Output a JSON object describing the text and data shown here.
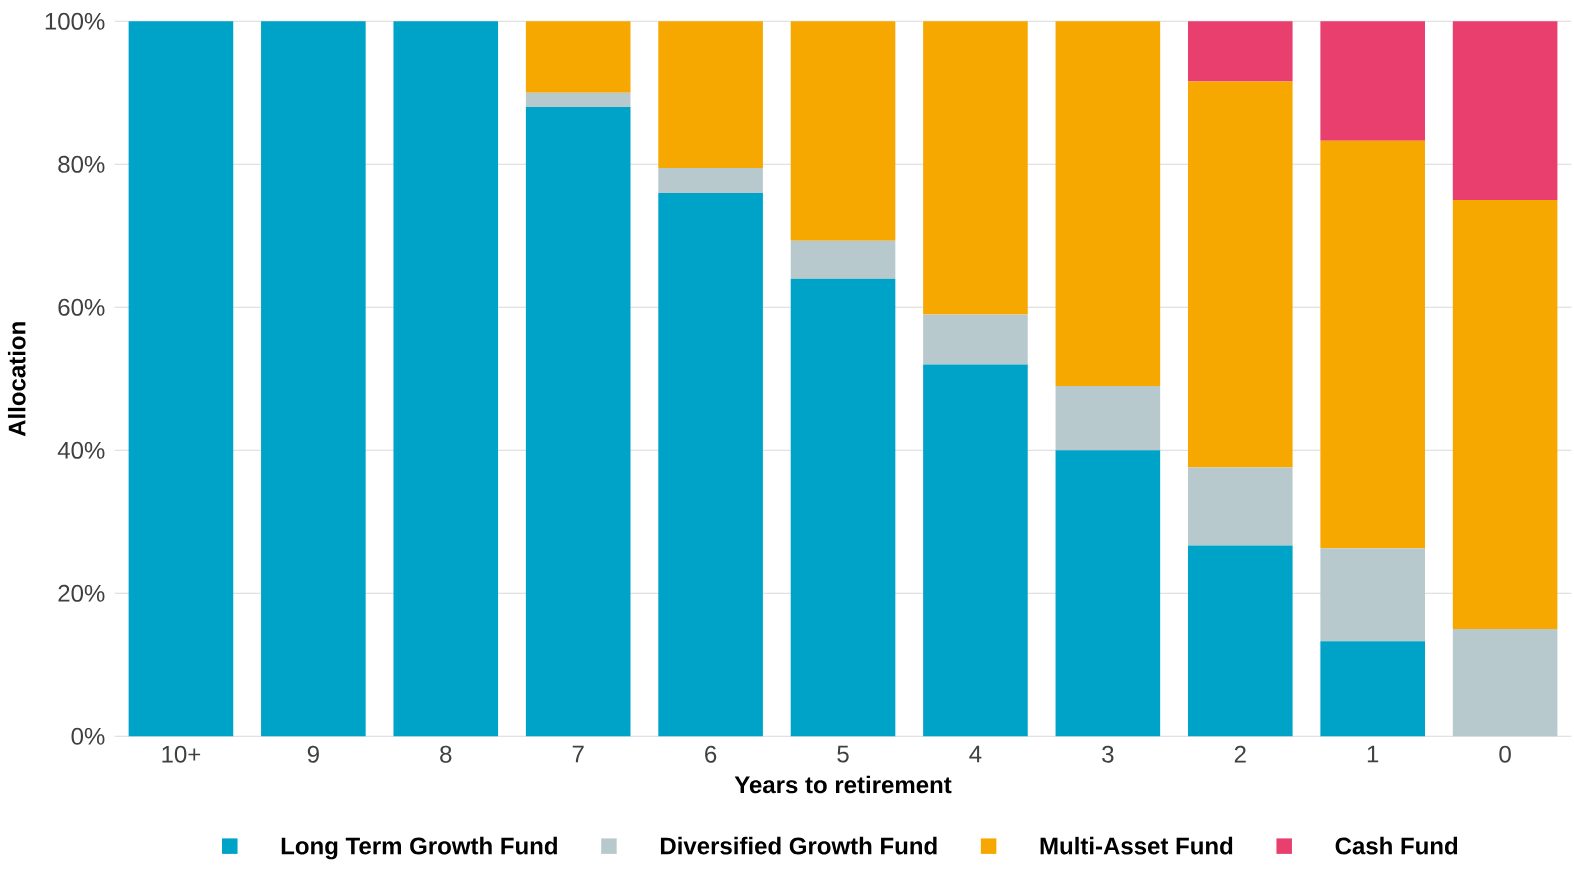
{
  "chart_data": {
    "type": "bar",
    "stacked": true,
    "xlabel": "Years to retirement",
    "ylabel": "Allocation",
    "categories": [
      "10+",
      "9",
      "8",
      "7",
      "6",
      "5",
      "4",
      "3",
      "2",
      "1",
      "0"
    ],
    "series": [
      {
        "name": "Long Term Growth Fund",
        "color": "#00a3c8",
        "values": [
          100,
          100,
          100,
          88,
          76,
          64,
          52,
          40,
          26.7,
          13.3,
          0
        ]
      },
      {
        "name": "Diversified Growth Fund",
        "color": "#b8c9cd",
        "values": [
          0,
          0,
          0,
          2,
          3.5,
          5.3,
          7,
          9,
          10.9,
          13,
          15
        ]
      },
      {
        "name": "Multi-Asset Fund",
        "color": "#f7a800",
        "values": [
          0,
          0,
          0,
          10,
          20.5,
          30.7,
          41,
          51,
          54,
          57,
          60
        ]
      },
      {
        "name": "Cash Fund",
        "color": "#e83f6f",
        "values": [
          0,
          0,
          0,
          0,
          0,
          0,
          0,
          0,
          8.4,
          16.7,
          25
        ]
      }
    ],
    "ylim": [
      0,
      100
    ],
    "yticks": [
      {
        "value": 0,
        "label": "0%"
      },
      {
        "value": 20,
        "label": "20%"
      },
      {
        "value": 40,
        "label": "40%"
      },
      {
        "value": 60,
        "label": "60%"
      },
      {
        "value": 80,
        "label": "80%"
      },
      {
        "value": 100,
        "label": "100%"
      }
    ],
    "grid": "y",
    "legend": "bottom"
  }
}
